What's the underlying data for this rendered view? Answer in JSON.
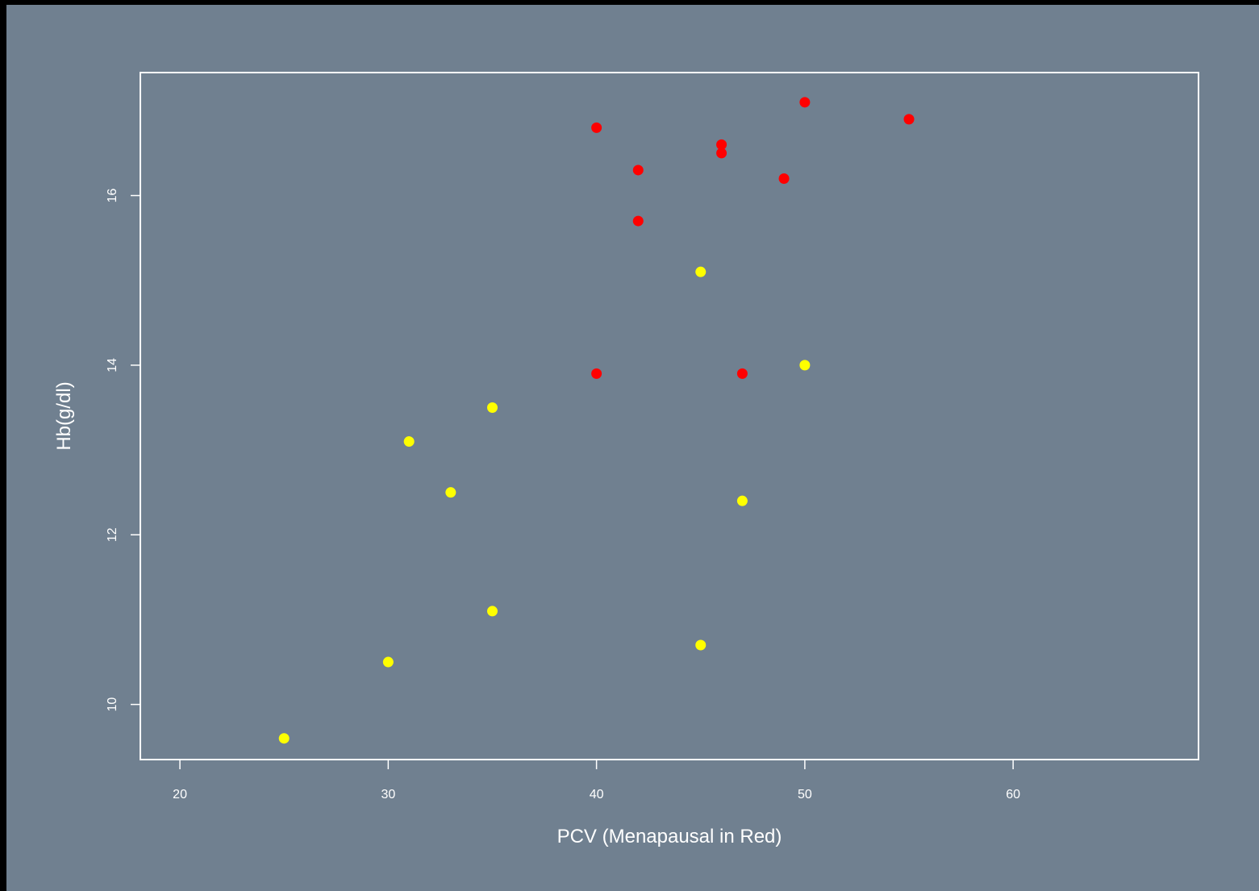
{
  "chart_data": {
    "type": "scatter",
    "title": "",
    "xlabel": "PCV (Menapausal in Red)",
    "ylabel": "Hb(g/dl)",
    "xlim": [
      18.1,
      68.9
    ],
    "ylim": [
      9.35,
      17.45
    ],
    "xticks": [
      20,
      30,
      40,
      50,
      60
    ],
    "yticks": [
      10,
      12,
      14,
      16
    ],
    "grid": false,
    "legend": "none",
    "background_color": "#708090",
    "axis_color": "#ffffff",
    "series": [
      {
        "color": "#ff0000",
        "points": [
          {
            "x": 40,
            "y": 16.8
          },
          {
            "x": 42,
            "y": 16.3
          },
          {
            "x": 42,
            "y": 15.7
          },
          {
            "x": 46,
            "y": 16.6
          },
          {
            "x": 46,
            "y": 16.5
          },
          {
            "x": 49,
            "y": 16.2
          },
          {
            "x": 50,
            "y": 17.1
          },
          {
            "x": 55,
            "y": 16.9
          },
          {
            "x": 40,
            "y": 13.9
          },
          {
            "x": 47,
            "y": 13.9
          }
        ]
      },
      {
        "color": "#ffff00",
        "points": [
          {
            "x": 45,
            "y": 15.1
          },
          {
            "x": 50,
            "y": 14.0
          },
          {
            "x": 35,
            "y": 13.5
          },
          {
            "x": 31,
            "y": 13.1
          },
          {
            "x": 33,
            "y": 12.5
          },
          {
            "x": 47,
            "y": 12.4
          },
          {
            "x": 35,
            "y": 11.1
          },
          {
            "x": 45,
            "y": 10.7
          },
          {
            "x": 30,
            "y": 10.5
          },
          {
            "x": 25,
            "y": 9.6
          }
        ]
      }
    ]
  }
}
